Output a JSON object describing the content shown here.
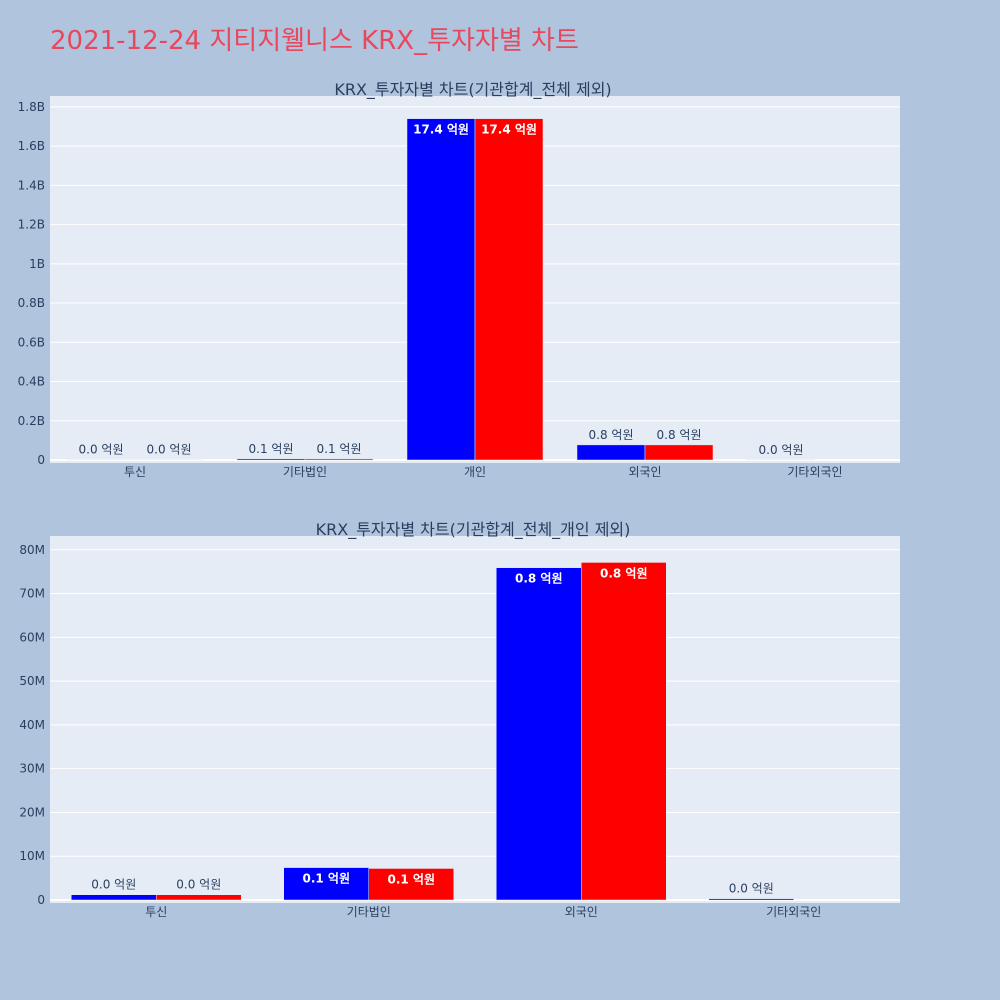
{
  "page": {
    "title": "2021-12-24 지티지웰니스 KRX_투자자별 차트"
  },
  "colors": {
    "background": "#b0c4de",
    "plot_bg": "#e5ecf6",
    "title": "#e8485e",
    "series_a": "#0000ff",
    "series_b": "#ff0000"
  },
  "chart_data": [
    {
      "type": "bar",
      "title": "KRX_투자자별 차트(기관합계_전체 제외)",
      "categories": [
        "투신",
        "기타법인",
        "개인",
        "외국인",
        "기타외국인"
      ],
      "series": [
        {
          "color": "#0000ff",
          "values": [
            1500000,
            6000000,
            1740000000,
            77000000,
            500000
          ],
          "labels": [
            "0.0 억원",
            "0.1 억원",
            "17.4 억원",
            "0.8 억원",
            "0.0 억원"
          ]
        },
        {
          "color": "#ff0000",
          "values": [
            1500000,
            6000000,
            1740000000,
            77000000,
            0
          ],
          "labels": [
            "0.0 억원",
            "0.1 억원",
            "17.4 억원",
            "0.8 억원",
            ""
          ]
        }
      ],
      "ylim": [
        0,
        1830000000
      ],
      "yticks": [
        {
          "v": 0,
          "label": "0"
        },
        {
          "v": 200000000,
          "label": "0.2B"
        },
        {
          "v": 400000000,
          "label": "0.4B"
        },
        {
          "v": 600000000,
          "label": "0.6B"
        },
        {
          "v": 800000000,
          "label": "0.8B"
        },
        {
          "v": 1000000000,
          "label": "1B"
        },
        {
          "v": 1200000000,
          "label": "1.2B"
        },
        {
          "v": 1400000000,
          "label": "1.4B"
        },
        {
          "v": 1600000000,
          "label": "1.6B"
        },
        {
          "v": 1800000000,
          "label": "1.8B"
        }
      ],
      "grid": true
    },
    {
      "type": "bar",
      "title": "KRX_투자자별 차트(기관합계_전체_개인 제외)",
      "categories": [
        "투신",
        "기타법인",
        "외국인",
        "기타외국인"
      ],
      "series": [
        {
          "color": "#0000ff",
          "values": [
            1200000,
            7400000,
            75900000,
            300000
          ],
          "labels": [
            "0.0 억원",
            "0.1 억원",
            "0.8 억원",
            "0.0 억원"
          ]
        },
        {
          "color": "#ff0000",
          "values": [
            1200000,
            7200000,
            77100000,
            0
          ],
          "labels": [
            "0.0 억원",
            "0.1 억원",
            "0.8 억원",
            ""
          ]
        }
      ],
      "ylim": [
        0,
        82000000
      ],
      "yticks": [
        {
          "v": 0,
          "label": "0"
        },
        {
          "v": 10000000,
          "label": "10M"
        },
        {
          "v": 20000000,
          "label": "20M"
        },
        {
          "v": 30000000,
          "label": "30M"
        },
        {
          "v": 40000000,
          "label": "40M"
        },
        {
          "v": 50000000,
          "label": "50M"
        },
        {
          "v": 60000000,
          "label": "60M"
        },
        {
          "v": 70000000,
          "label": "70M"
        },
        {
          "v": 80000000,
          "label": "80M"
        }
      ],
      "grid": true
    }
  ]
}
